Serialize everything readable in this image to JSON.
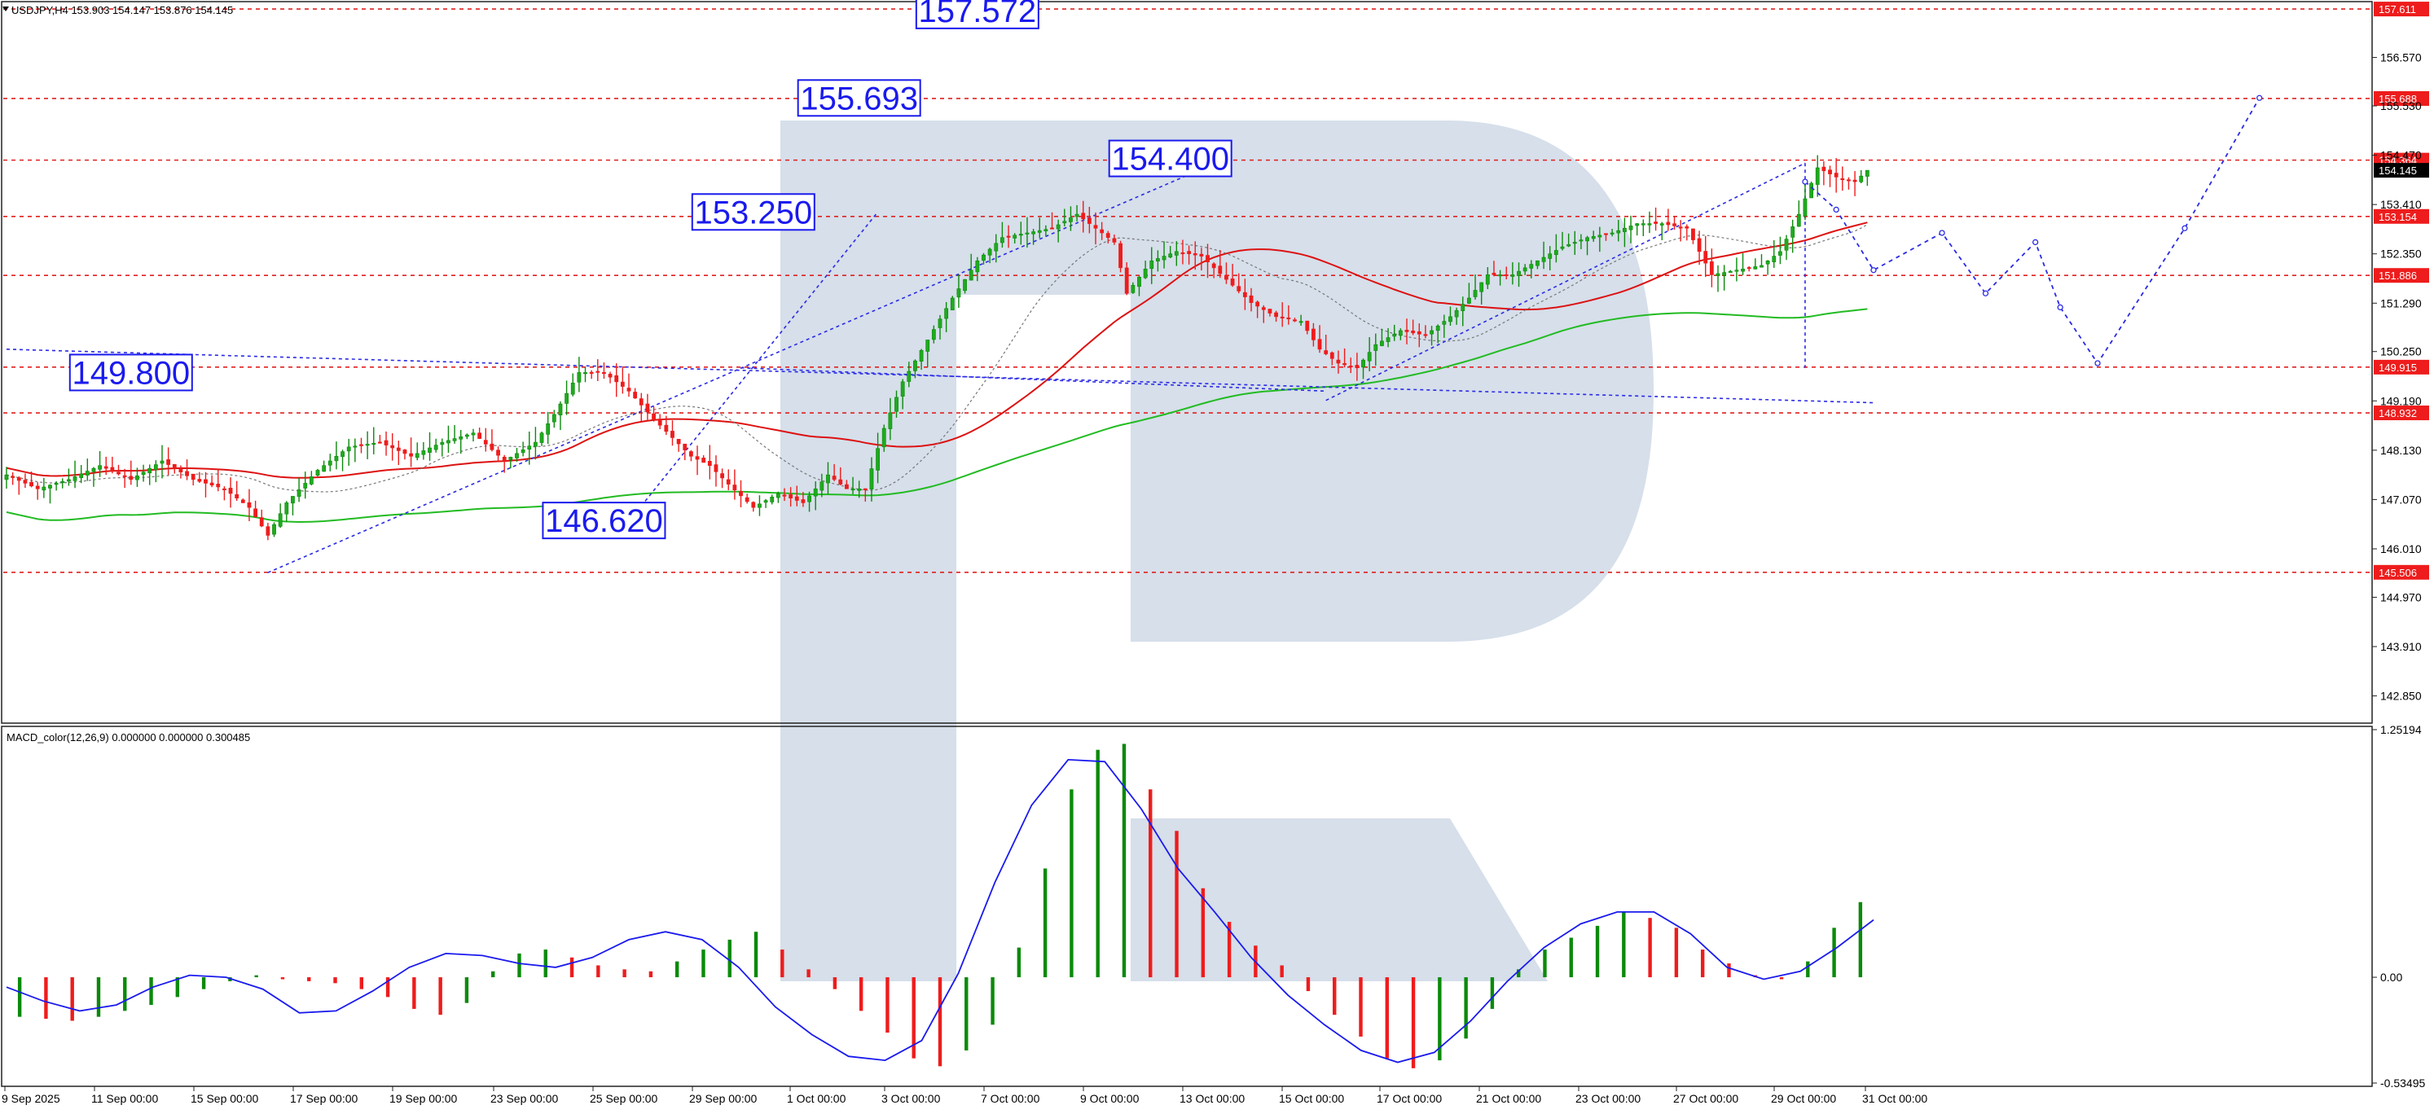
{
  "header": {
    "symbol_info": "USDJPY,H4  153.903 154.147 153.876 154.145",
    "macd_info": "MACD_color(12,26,9) 0.000000 0.000000 0.300485"
  },
  "colors": {
    "bull": "#0b8a0b",
    "bear": "#ee1c1c",
    "grid_level": "#e02020",
    "forecast": "#2a2ae6",
    "ma_red": "#dd1111",
    "ma_green": "#22bb22",
    "ma_gray": "#777777",
    "macd_signal": "#1a1aee",
    "watermark": "#d6dfea",
    "label_box": "#1a1aee",
    "price_tag": "#ee1c1c"
  },
  "chart_data": [
    {
      "type": "candlestick",
      "title": "USDJPY,H4",
      "ohlc_header": {
        "open": 153.903,
        "high": 154.147,
        "low": 153.876,
        "close": 154.145
      },
      "ylim": [
        142.3,
        157.7
      ],
      "x_ticks": [
        "9 Sep 2025",
        "11 Sep 00:00",
        "15 Sep 00:00",
        "17 Sep 00:00",
        "19 Sep 00:00",
        "23 Sep 00:00",
        "25 Sep 00:00",
        "29 Sep 00:00",
        "1 Oct 00:00",
        "3 Oct 00:00",
        "7 Oct 00:00",
        "9 Oct 00:00",
        "13 Oct 00:00",
        "15 Oct 00:00",
        "17 Oct 00:00",
        "21 Oct 00:00",
        "23 Oct 00:00",
        "27 Oct 00:00",
        "29 Oct 00:00",
        "31 Oct 00:00"
      ],
      "y_ticks": [
        "156.570",
        "155.530",
        "154.470",
        "153.410",
        "152.350",
        "151.290",
        "150.250",
        "149.190",
        "148.130",
        "147.070",
        "146.010",
        "144.970",
        "143.910",
        "142.850"
      ],
      "horizontal_levels": [
        "157.611",
        "155.688",
        "154.364",
        "154.145",
        "153.154",
        "151.886",
        "149.915",
        "148.932",
        "145.506"
      ],
      "close_path": [
        [
          0,
          147.6
        ],
        [
          5,
          147.3
        ],
        [
          10,
          147.5
        ],
        [
          15,
          147.8
        ],
        [
          20,
          147.5
        ],
        [
          25,
          147.9
        ],
        [
          30,
          147.5
        ],
        [
          35,
          147.3
        ],
        [
          39,
          146.9
        ],
        [
          42,
          146.3
        ],
        [
          45,
          147.0
        ],
        [
          50,
          147.7
        ],
        [
          55,
          148.2
        ],
        [
          60,
          148.3
        ],
        [
          65,
          148.0
        ],
        [
          70,
          148.3
        ],
        [
          75,
          148.5
        ],
        [
          80,
          147.9
        ],
        [
          85,
          148.3
        ],
        [
          88,
          148.9
        ],
        [
          92,
          149.8
        ],
        [
          96,
          149.8
        ],
        [
          100,
          149.4
        ],
        [
          104,
          148.8
        ],
        [
          107,
          148.4
        ],
        [
          110,
          148.0
        ],
        [
          113,
          147.8
        ],
        [
          116,
          147.4
        ],
        [
          120,
          146.9
        ],
        [
          124,
          147.2
        ],
        [
          128,
          147.0
        ],
        [
          132,
          147.6
        ],
        [
          135,
          147.3
        ],
        [
          138,
          147.3
        ],
        [
          141,
          148.6
        ],
        [
          144,
          149.6
        ],
        [
          148,
          150.5
        ],
        [
          152,
          151.4
        ],
        [
          156,
          152.2
        ],
        [
          160,
          152.7
        ],
        [
          164,
          152.8
        ],
        [
          168,
          152.9
        ],
        [
          172,
          153.2
        ],
        [
          175,
          152.9
        ],
        [
          178,
          152.6
        ],
        [
          180,
          151.5
        ],
        [
          184,
          152.2
        ],
        [
          188,
          152.4
        ],
        [
          192,
          152.3
        ],
        [
          196,
          151.8
        ],
        [
          200,
          151.3
        ],
        [
          204,
          151.0
        ],
        [
          208,
          150.9
        ],
        [
          211,
          150.3
        ],
        [
          214,
          150.0
        ],
        [
          217,
          149.9
        ],
        [
          220,
          150.4
        ],
        [
          224,
          150.7
        ],
        [
          228,
          150.6
        ],
        [
          232,
          151.0
        ],
        [
          235,
          151.4
        ],
        [
          238,
          151.9
        ],
        [
          242,
          151.9
        ],
        [
          246,
          152.2
        ],
        [
          250,
          152.5
        ],
        [
          254,
          152.7
        ],
        [
          258,
          152.8
        ],
        [
          262,
          153.0
        ],
        [
          266,
          153.0
        ],
        [
          270,
          152.9
        ],
        [
          274,
          151.9
        ],
        [
          278,
          152.0
        ],
        [
          282,
          152.1
        ],
        [
          285,
          152.4
        ],
        [
          288,
          153.2
        ],
        [
          291,
          154.2
        ],
        [
          294,
          154.0
        ],
        [
          297,
          153.9
        ],
        [
          299,
          154.145
        ]
      ],
      "annotations": [
        "157.572",
        "155.693",
        "154.400",
        "153.250",
        "149.800",
        "146.620"
      ],
      "forecast_path": [
        [
          289,
          153.9
        ],
        [
          294,
          153.3
        ],
        [
          300,
          152.0
        ],
        [
          311,
          152.8
        ],
        [
          318,
          151.5
        ],
        [
          326,
          152.6
        ],
        [
          330,
          151.2
        ],
        [
          336,
          150.0
        ],
        [
          350,
          152.9
        ],
        [
          362,
          155.7
        ]
      ]
    },
    {
      "type": "bar",
      "title": "MACD_color(12,26,9)",
      "ylim": [
        -0.53495,
        1.25194
      ],
      "y_ticks": [
        "1.25194",
        "0.00",
        "-0.53495"
      ],
      "values": [
        -0.2,
        -0.21,
        -0.22,
        -0.2,
        -0.17,
        -0.14,
        -0.1,
        -0.06,
        -0.02,
        0.01,
        -0.01,
        -0.02,
        -0.03,
        -0.06,
        -0.1,
        -0.16,
        -0.19,
        -0.13,
        0.03,
        0.12,
        0.14,
        0.1,
        0.06,
        0.04,
        0.03,
        0.08,
        0.14,
        0.19,
        0.23,
        0.14,
        0.04,
        -0.06,
        -0.17,
        -0.28,
        -0.41,
        -0.45,
        -0.37,
        -0.24,
        0.15,
        0.55,
        0.95,
        1.15,
        1.18,
        0.95,
        0.74,
        0.45,
        0.28,
        0.16,
        0.06,
        -0.07,
        -0.19,
        -0.3,
        -0.41,
        -0.46,
        -0.42,
        -0.31,
        -0.16,
        0.04,
        0.14,
        0.2,
        0.26,
        0.33,
        0.3,
        0.25,
        0.14,
        0.07,
        0.01,
        -0.01,
        0.08,
        0.25,
        0.38
      ],
      "signal": [
        -0.05,
        -0.12,
        -0.17,
        -0.14,
        -0.05,
        0.01,
        0.0,
        -0.06,
        -0.18,
        -0.17,
        -0.07,
        0.05,
        0.12,
        0.11,
        0.07,
        0.05,
        0.1,
        0.19,
        0.23,
        0.19,
        0.05,
        -0.15,
        -0.29,
        -0.4,
        -0.42,
        -0.32,
        0.02,
        0.48,
        0.87,
        1.1,
        1.09,
        0.85,
        0.55,
        0.33,
        0.1,
        -0.09,
        -0.24,
        -0.37,
        -0.43,
        -0.38,
        -0.22,
        -0.02,
        0.15,
        0.27,
        0.33,
        0.33,
        0.22,
        0.05,
        -0.01,
        0.03,
        0.15,
        0.29
      ]
    }
  ]
}
